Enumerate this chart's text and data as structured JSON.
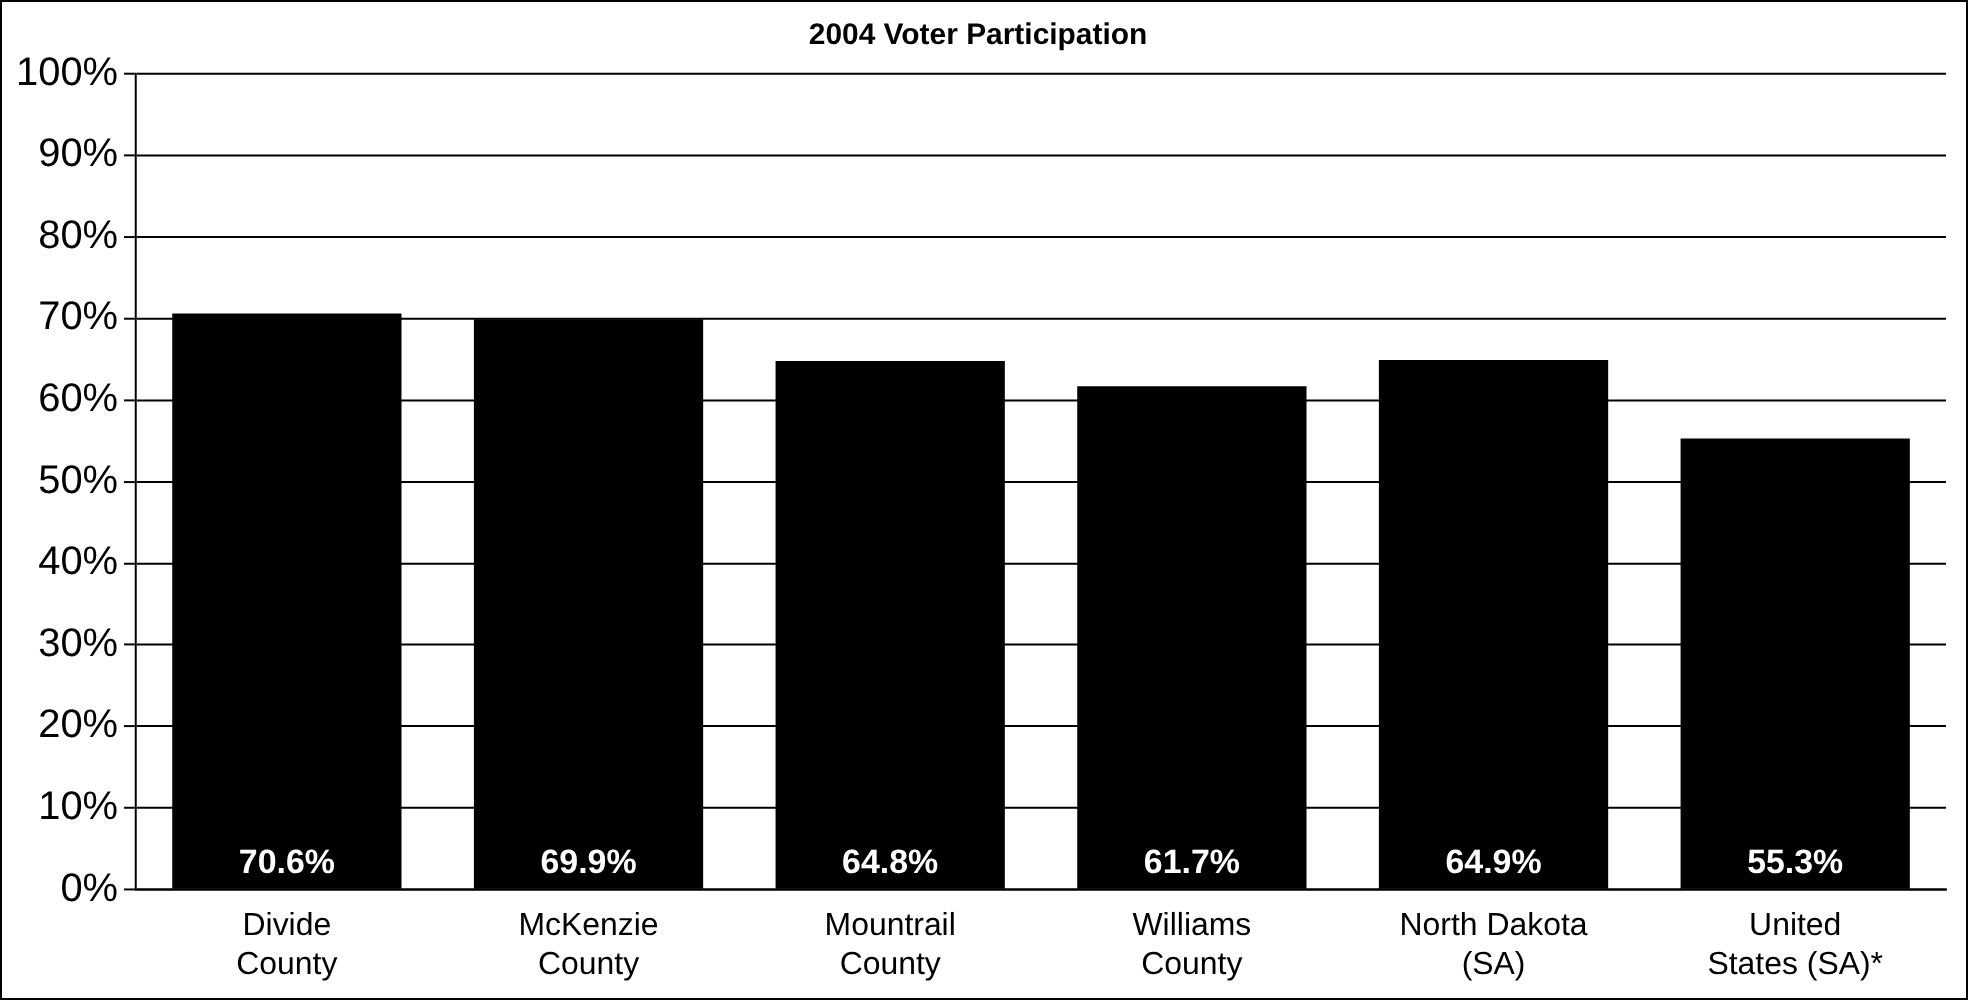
{
  "chart_data": {
    "type": "bar",
    "title": "2004 Voter Participation",
    "categories": [
      "Divide County",
      "McKenzie County",
      "Mountrail County",
      "Williams County",
      "North Dakota (SA)",
      "United States (SA)*"
    ],
    "values": [
      70.6,
      69.9,
      64.8,
      61.7,
      64.9,
      55.3
    ],
    "value_labels": [
      "70.6%",
      "69.9%",
      "64.8%",
      "61.7%",
      "64.9%",
      "55.3%"
    ],
    "color": "#000000",
    "ylim": [
      0,
      100
    ],
    "yticks": [
      {
        "value": 0,
        "label": "0%"
      },
      {
        "value": 10,
        "label": "10%"
      },
      {
        "value": 20,
        "label": "20%"
      },
      {
        "value": 30,
        "label": "30%"
      },
      {
        "value": 40,
        "label": "40%"
      },
      {
        "value": 50,
        "label": "50%"
      },
      {
        "value": 60,
        "label": "60%"
      },
      {
        "value": 70,
        "label": "70%"
      },
      {
        "value": 80,
        "label": "80%"
      },
      {
        "value": 90,
        "label": "90%"
      },
      {
        "value": 100,
        "label": "100%"
      }
    ],
    "grid": "y",
    "legend": false
  }
}
